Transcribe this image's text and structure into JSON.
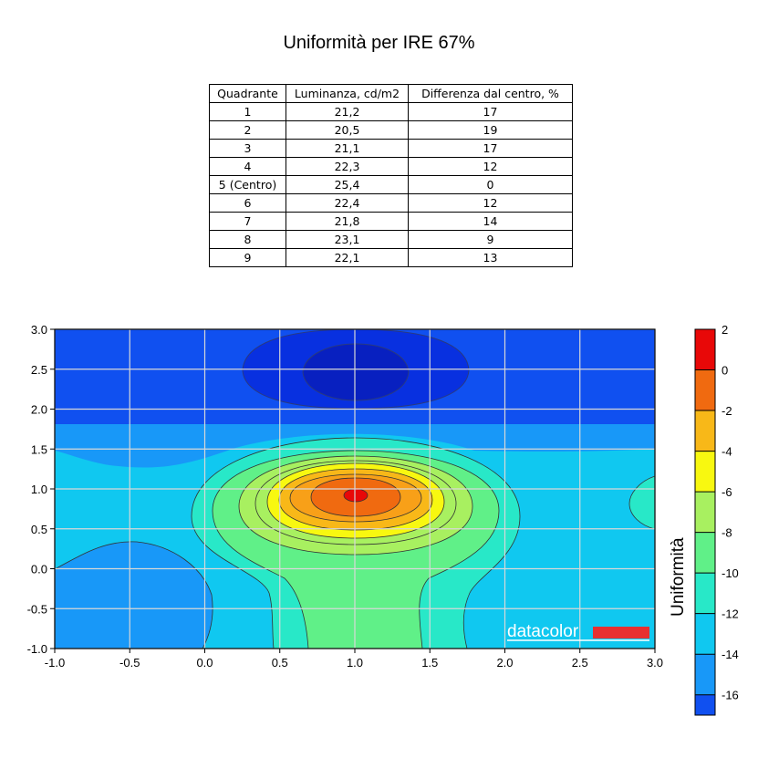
{
  "title": "Uniformità per IRE 67%",
  "table": {
    "headers": [
      "Quadrante",
      "Luminanza, cd/m2",
      "Differenza dal centro, %"
    ],
    "rows": [
      [
        "1",
        "21,2",
        "17"
      ],
      [
        "2",
        "20,5",
        "19"
      ],
      [
        "3",
        "21,1",
        "17"
      ],
      [
        "4",
        "22,3",
        "12"
      ],
      [
        "5 (Centro)",
        "25,4",
        "0"
      ],
      [
        "6",
        "22,4",
        "12"
      ],
      [
        "7",
        "21,8",
        "14"
      ],
      [
        "8",
        "23,1",
        "9"
      ],
      [
        "9",
        "22,1",
        "13"
      ]
    ]
  },
  "chart_data": {
    "type": "heatmap",
    "subtype": "contour",
    "x_ticks": [
      "-1.0",
      "-0.5",
      "0.0",
      "0.5",
      "1.0",
      "1.5",
      "2.0",
      "2.5",
      "3.0"
    ],
    "y_ticks": [
      "3.0",
      "2.5",
      "2.0",
      "1.5",
      "1.0",
      "0.5",
      "0.0",
      "-0.5",
      "-1.0"
    ],
    "xlim": [
      -1.0,
      3.0
    ],
    "ylim": [
      -1.0,
      3.0
    ],
    "grid": true,
    "peak": {
      "x": 1.0,
      "y": 0.9,
      "value": 0
    },
    "colorbar": {
      "label": "Uniformità",
      "ticks": [
        "2",
        "0",
        "-2",
        "-4",
        "-6",
        "-8",
        "-10",
        "-12",
        "-14",
        "-16"
      ],
      "range": [
        -17,
        2
      ],
      "bands": [
        {
          "from": 0,
          "to": 2,
          "color": "#e80808"
        },
        {
          "from": -2,
          "to": 0,
          "color": "#f06a10"
        },
        {
          "from": -4,
          "to": -2,
          "color": "#f8b818"
        },
        {
          "from": -6,
          "to": -4,
          "color": "#f8f810"
        },
        {
          "from": -8,
          "to": -6,
          "color": "#a8f060"
        },
        {
          "from": -10,
          "to": -8,
          "color": "#60f088"
        },
        {
          "from": -12,
          "to": -10,
          "color": "#28e8c8"
        },
        {
          "from": -14,
          "to": -12,
          "color": "#10c8f0"
        },
        {
          "from": -16,
          "to": -14,
          "color": "#1898f8"
        },
        {
          "from": -17,
          "to": -16,
          "color": "#1050f0"
        }
      ]
    },
    "watermark": "datacolor"
  }
}
